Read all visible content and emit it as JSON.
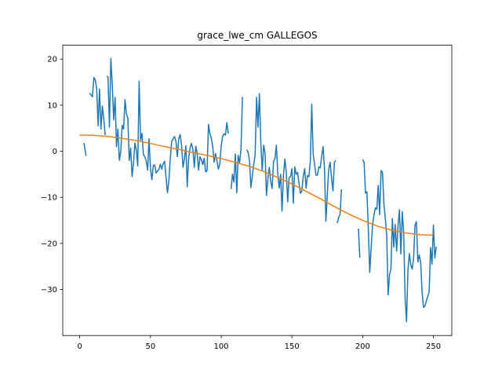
{
  "chart_data": {
    "type": "line",
    "title": "grace_lwe_cm GALLEGOS",
    "xlabel": "",
    "ylabel": "",
    "xlim": [
      -12,
      263
    ],
    "ylim": [
      -40,
      23
    ],
    "xticks": [
      0,
      50,
      100,
      150,
      200,
      250
    ],
    "yticks": [
      20,
      10,
      0,
      -10,
      -20,
      -30
    ],
    "grid": false,
    "colors": {
      "raw": "#1f77b4",
      "trend": "#ff7f0e"
    },
    "series": [
      {
        "segments": [
          [
            [
              3,
              1.8
            ],
            [
              4.5,
              -1
            ]
          ],
          [
            [
              7,
              12.6
            ],
            [
              8,
              12.2
            ],
            [
              9,
              11.8
            ],
            [
              10,
              16
            ],
            [
              11,
              15.5
            ],
            [
              12,
              13.5
            ],
            [
              13,
              5.5
            ],
            [
              14,
              13.5
            ],
            [
              15,
              4.8
            ],
            [
              16,
              9.8
            ],
            [
              17,
              7
            ],
            [
              18,
              3.5
            ]
          ],
          [
            [
              19,
              16.3
            ],
            [
              20,
              16.1
            ],
            [
              21,
              5.2
            ],
            [
              22,
              20.1
            ],
            [
              23,
              14.5
            ],
            [
              24,
              6.8
            ],
            [
              25,
              11.7
            ],
            [
              26,
              1
            ],
            [
              27,
              4.8
            ],
            [
              28,
              -2
            ],
            [
              29,
              0
            ],
            [
              30,
              5.6
            ],
            [
              31,
              4.8
            ],
            [
              32,
              11.2
            ],
            [
              33,
              8.1
            ],
            [
              34,
              7.2
            ],
            [
              35,
              -2
            ],
            [
              36,
              0.7
            ],
            [
              37,
              -5.5
            ],
            [
              38,
              -2.6
            ],
            [
              39,
              1.8
            ],
            [
              40,
              0.2
            ],
            [
              41,
              -3.2
            ],
            [
              42,
              15.2
            ],
            [
              43,
              2.4
            ],
            [
              44,
              3.9
            ],
            [
              45,
              -0.7
            ],
            [
              46,
              -1.2
            ],
            [
              47,
              -2.1
            ],
            [
              48,
              -4.1
            ],
            [
              49,
              2.7
            ],
            [
              50,
              -3.8
            ],
            [
              51,
              -6.2
            ],
            [
              52,
              -3.1
            ],
            [
              53,
              -3
            ],
            [
              54,
              -4.7
            ],
            [
              55,
              -4.3
            ],
            [
              56,
              -3.9
            ],
            [
              57,
              -2.8
            ],
            [
              58,
              -3.9
            ],
            [
              59,
              -2.7
            ],
            [
              60,
              -2.2
            ],
            [
              61,
              -5.6
            ],
            [
              62,
              -9
            ],
            [
              63,
              -6.5
            ],
            [
              64,
              -1.5
            ],
            [
              65,
              2.1
            ],
            [
              66,
              2.7
            ],
            [
              67,
              3.2
            ],
            [
              68,
              2.2
            ],
            [
              69,
              -1.2
            ],
            [
              70,
              2.8
            ],
            [
              71,
              3.6
            ],
            [
              72,
              1.3
            ],
            [
              73,
              -3.5
            ],
            [
              74,
              -1.7
            ],
            [
              75,
              1.2
            ],
            [
              76,
              -7.7
            ],
            [
              77,
              -1.5
            ],
            [
              78,
              0.8
            ],
            [
              79,
              1.7
            ],
            [
              80,
              0.3
            ],
            [
              81,
              -3.5
            ],
            [
              82,
              1.1
            ],
            [
              83,
              -0.4
            ],
            [
              84,
              -4.1
            ],
            [
              85,
              -1.2
            ],
            [
              86,
              -1.9
            ],
            [
              87,
              -2.9
            ],
            [
              88,
              -1.5
            ],
            [
              89,
              -4.5
            ],
            [
              90,
              -4.2
            ],
            [
              91,
              5.8
            ],
            [
              92,
              3.9
            ],
            [
              93,
              2.8
            ],
            [
              94,
              1.1
            ],
            [
              95,
              -2.4
            ],
            [
              96,
              -0.5
            ],
            [
              97,
              -2.1
            ],
            [
              98,
              -3.9
            ],
            [
              99,
              -2.8
            ],
            [
              100,
              1.2
            ],
            [
              101,
              3.2
            ],
            [
              102,
              3.8
            ],
            [
              103,
              3.5
            ],
            [
              104,
              6.2
            ],
            [
              105,
              3.8
            ]
          ],
          [
            [
              107,
              -8.2
            ],
            [
              108,
              -5
            ],
            [
              109,
              -6.7
            ],
            [
              110,
              -0.6
            ],
            [
              111,
              -9
            ],
            [
              112,
              -0.9
            ],
            [
              113,
              -2.5
            ],
            [
              114,
              0.5
            ],
            [
              115,
              11.8
            ]
          ],
          [
            [
              118,
              0.3
            ],
            [
              119,
              -0.2
            ],
            [
              120,
              -2
            ],
            [
              121,
              -7.9
            ],
            [
              122,
              -5.4
            ],
            [
              123,
              -2.8
            ],
            [
              124,
              -0.8
            ],
            [
              125,
              11.7
            ],
            [
              126,
              5.2
            ],
            [
              127,
              12.5
            ],
            [
              128,
              1.8
            ],
            [
              129,
              -4.2
            ],
            [
              130,
              1.3
            ],
            [
              131,
              -0.4
            ],
            [
              132,
              -9.6
            ],
            [
              133,
              -6.1
            ],
            [
              134,
              -3.5
            ],
            [
              135,
              -6.6
            ],
            [
              136,
              -8.1
            ],
            [
              137,
              -2.2
            ],
            [
              138,
              -1.6
            ],
            [
              139,
              1.3
            ],
            [
              140,
              -4.9
            ],
            [
              141,
              -8
            ],
            [
              142,
              -5
            ],
            [
              143,
              -13
            ],
            [
              144,
              -5.2
            ],
            [
              145,
              -1.7
            ],
            [
              146,
              -4.5
            ],
            [
              147,
              -11
            ],
            [
              148,
              -5.7
            ],
            [
              149,
              -5.5
            ],
            [
              150,
              -3.8
            ],
            [
              151,
              -11.3
            ],
            [
              152,
              -3.4
            ],
            [
              153,
              -5
            ],
            [
              154,
              -4.6
            ],
            [
              155,
              -7
            ],
            [
              156,
              -9.1
            ],
            [
              157,
              -8.7
            ],
            [
              158,
              -5.4
            ],
            [
              159,
              -3.8
            ],
            [
              160,
              -8
            ],
            [
              161,
              -5.3
            ],
            [
              162,
              -5.5
            ],
            [
              163,
              -2.2
            ],
            [
              164,
              10.2
            ],
            [
              165,
              -0.6
            ],
            [
              166,
              -2.8
            ],
            [
              167,
              -5.2
            ],
            [
              168,
              -5.2
            ],
            [
              169,
              -3.4
            ],
            [
              170,
              -3.6
            ],
            [
              171,
              -1.2
            ],
            [
              172,
              1
            ],
            [
              173,
              -3.6
            ],
            [
              174,
              -15.2
            ],
            [
              175,
              -9.3
            ],
            [
              176,
              -3.9
            ],
            [
              177,
              -2.4
            ],
            [
              178,
              -5.8
            ],
            [
              179,
              -8.6
            ],
            [
              180,
              -2.4
            ],
            [
              181,
              -2
            ]
          ],
          [
            [
              182,
              -15.6
            ],
            [
              183,
              -14.4
            ],
            [
              184,
              -13.7
            ],
            [
              185,
              -8.3
            ]
          ],
          [
            [
              197,
              -16.8
            ],
            [
              198,
              -23.1
            ]
          ],
          [
            [
              200,
              -1.8
            ],
            [
              201,
              -2.4
            ],
            [
              202,
              -9.1
            ],
            [
              203,
              -8.8
            ],
            [
              204,
              -16.9
            ],
            [
              205,
              -26.3
            ],
            [
              206,
              -20.9
            ],
            [
              207,
              -16
            ],
            [
              208,
              -13.8
            ],
            [
              209,
              -12.3
            ],
            [
              210,
              -12.6
            ],
            [
              211,
              -7.4
            ],
            [
              212,
              -13.8
            ],
            [
              213,
              -4.2
            ],
            [
              214,
              -4.6
            ],
            [
              215,
              -11.4
            ],
            [
              216,
              -14.6
            ],
            [
              217,
              -18.3
            ],
            [
              218,
              -31.2
            ],
            [
              219,
              -26.8
            ],
            [
              220,
              -25.5
            ],
            [
              221,
              -14.6
            ],
            [
              222,
              -20.8
            ],
            [
              223,
              -15.9
            ],
            [
              224,
              -21.7
            ],
            [
              225,
              -16.1
            ],
            [
              226,
              -12.7
            ],
            [
              227,
              -22.3
            ],
            [
              228,
              -13.1
            ],
            [
              229,
              -17.8
            ],
            [
              230,
              -31.8
            ],
            [
              231,
              -37
            ],
            [
              232,
              -25.8
            ],
            [
              233,
              -22.2
            ],
            [
              234,
              -24.6
            ],
            [
              235,
              -25.6
            ],
            [
              236,
              -23.3
            ],
            [
              237,
              -16
            ],
            [
              238,
              -15.3
            ],
            [
              239,
              -24
            ],
            [
              240,
              -22.5
            ],
            [
              241,
              -24.2
            ],
            [
              242,
              -30.5
            ],
            [
              243,
              -33.9
            ],
            [
              244,
              -33.6
            ],
            [
              245,
              -32.5
            ],
            [
              246,
              -31.5
            ],
            [
              247,
              -30.5
            ],
            [
              248,
              -20.9
            ],
            [
              249,
              -24.5
            ],
            [
              250,
              -16
            ],
            [
              251,
              -23.2
            ],
            [
              252,
              -20.7
            ]
          ]
        ]
      },
      {
        "points": [
          [
            0,
            3.5
          ],
          [
            10,
            3.45
          ],
          [
            20,
            3.2
          ],
          [
            30,
            2.8
          ],
          [
            40,
            2.3
          ],
          [
            50,
            1.7
          ],
          [
            60,
            1
          ],
          [
            70,
            0.4
          ],
          [
            80,
            -0.3
          ],
          [
            90,
            -0.9
          ],
          [
            100,
            -1.6
          ],
          [
            110,
            -2.4
          ],
          [
            120,
            -3.3
          ],
          [
            130,
            -4.4
          ],
          [
            140,
            -5.7
          ],
          [
            150,
            -7.1
          ],
          [
            160,
            -8.7
          ],
          [
            170,
            -10.3
          ],
          [
            180,
            -12
          ],
          [
            190,
            -13.6
          ],
          [
            200,
            -15
          ],
          [
            210,
            -16.2
          ],
          [
            220,
            -17.1
          ],
          [
            230,
            -17.7
          ],
          [
            240,
            -18.1
          ],
          [
            245,
            -18.2
          ],
          [
            250,
            -18.2
          ]
        ]
      }
    ]
  }
}
